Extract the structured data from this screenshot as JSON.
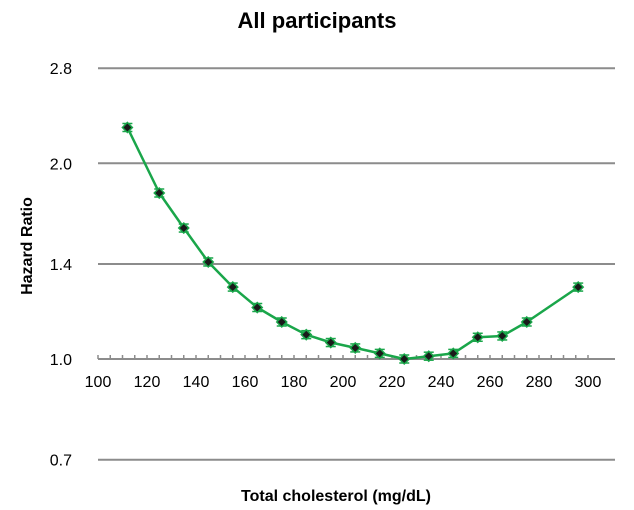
{
  "chart_data": {
    "type": "line",
    "title": "All participants",
    "xlabel": "Total cholesterol (mg/dL)",
    "ylabel": "Hazard Ratio",
    "xlim": [
      100,
      300
    ],
    "x_ticks": [
      100,
      120,
      140,
      160,
      180,
      200,
      220,
      240,
      260,
      280,
      300
    ],
    "y_ticks": [
      0.7,
      1.0,
      1.4,
      2.0,
      2.8
    ],
    "y_scale": "log",
    "grid": "horizontal",
    "line_color": "#1aa64a",
    "marker_color": "#1a1a1a",
    "series": [
      {
        "x": [
          112,
          125,
          135,
          145,
          155,
          165,
          175,
          185,
          195,
          205,
          215,
          225,
          235,
          245,
          255,
          265,
          275,
          296
        ],
        "y": [
          2.27,
          1.8,
          1.59,
          1.41,
          1.29,
          1.2,
          1.14,
          1.09,
          1.06,
          1.04,
          1.02,
          1.0,
          1.01,
          1.02,
          1.08,
          1.085,
          1.14,
          1.29
        ]
      }
    ]
  }
}
